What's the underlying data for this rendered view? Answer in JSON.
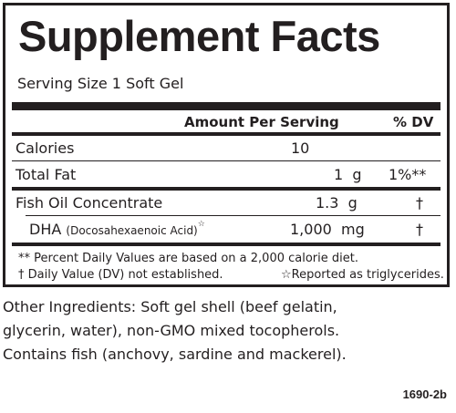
{
  "title": "Supplement Facts",
  "serving_size": "Serving Size 1 Soft Gel",
  "header": {
    "amount": "Amount Per Serving",
    "dv": "% DV"
  },
  "rows": [
    {
      "name": "Calories",
      "amount": "10",
      "dv": ""
    },
    {
      "name": "Total Fat",
      "amount": "1  g",
      "dv": "1%**"
    },
    {
      "name": "Fish Oil Concentrate",
      "amount": "1.3  g",
      "dv": "†"
    },
    {
      "name": "DHA",
      "name_detail": "(Docosahexaenoic Acid)",
      "name_mark": "☆",
      "amount": "1,000  mg",
      "dv": "†"
    }
  ],
  "footnotes": [
    "** Percent Daily Values are based on a 2,000 calorie diet.",
    "† Daily Value (DV) not established.",
    "☆Reported as triglycerides."
  ],
  "other_ingredients": [
    "Other Ingredients: Soft gel shell (beef gelatin,",
    "glycerin, water), non-GMO mixed tocopherols.",
    "Contains fish (anchovy, sardine and mackerel)."
  ],
  "product_code": "1690-2b"
}
